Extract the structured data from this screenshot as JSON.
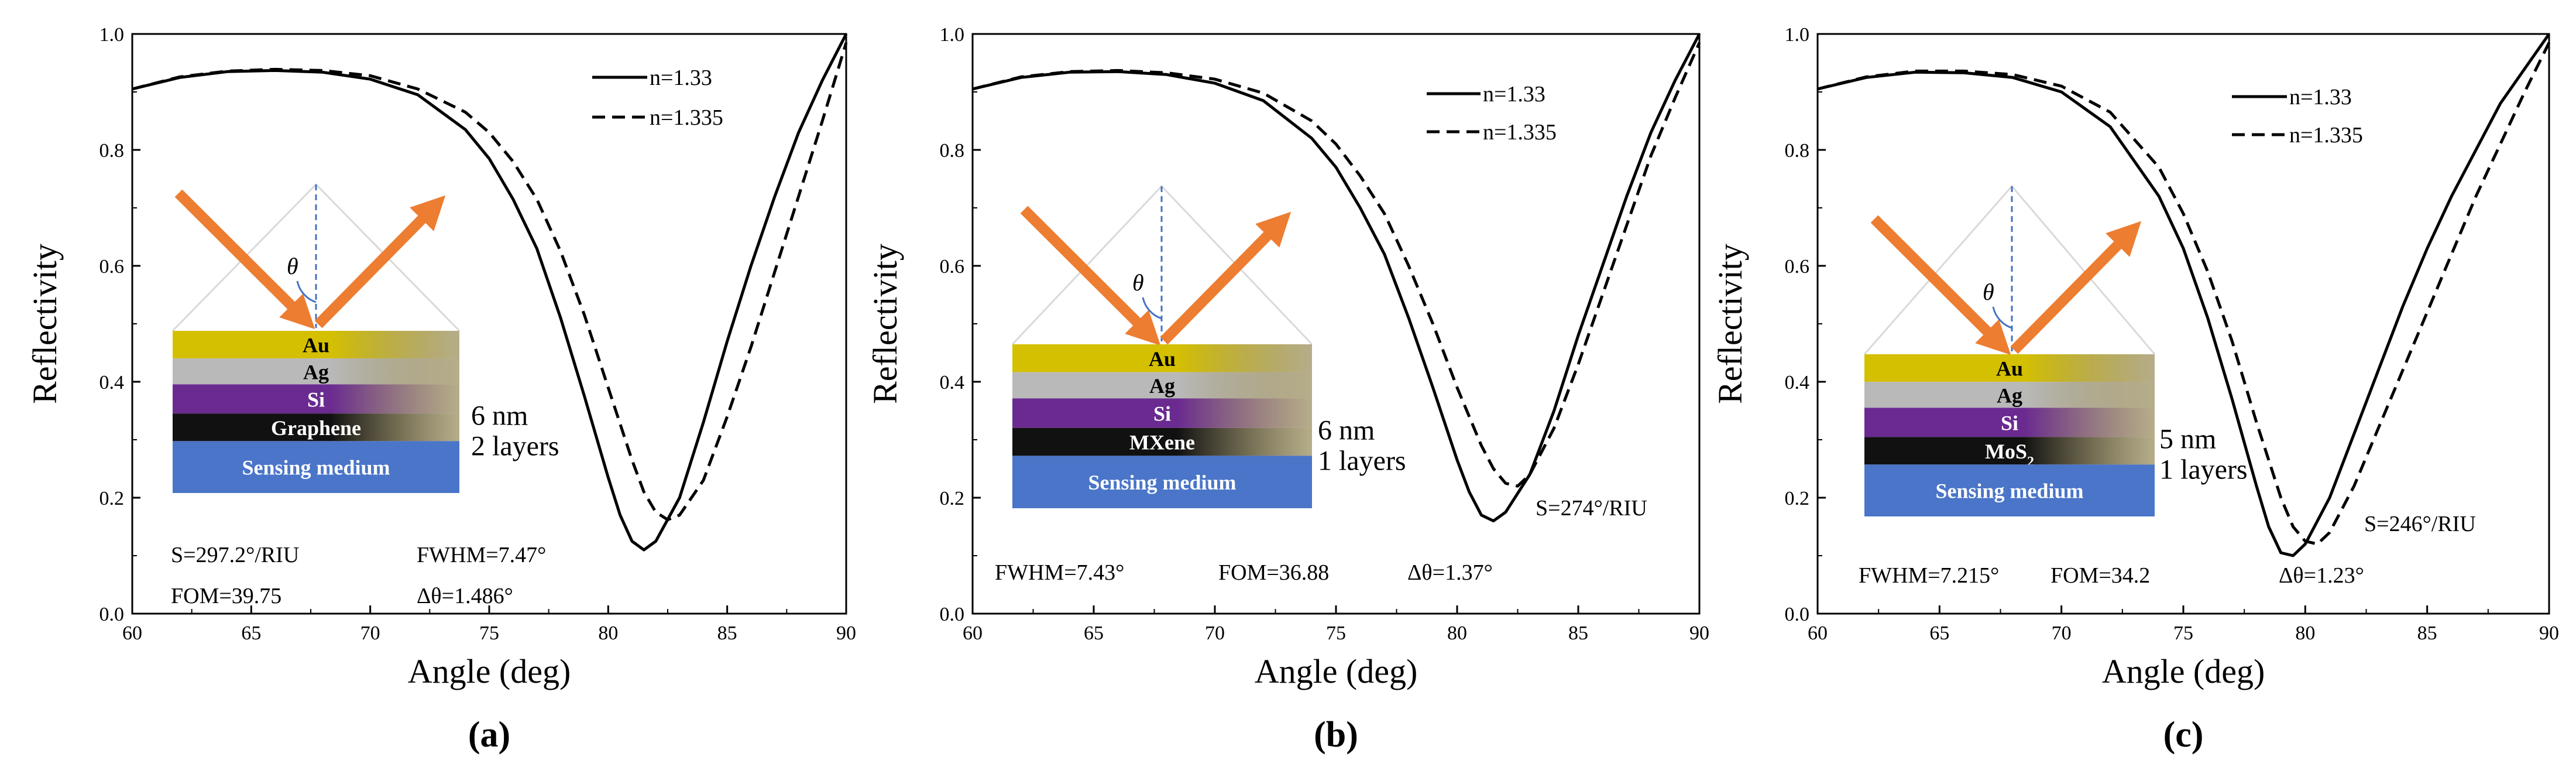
{
  "chart_data": [
    {
      "type": "line",
      "panel_label": "(a)",
      "xlabel": "Angle (deg)",
      "ylabel": "Reflectivity",
      "xlim": [
        60,
        90
      ],
      "ylim": [
        0.0,
        1.0
      ],
      "xticks": [
        "60",
        "65",
        "70",
        "75",
        "80",
        "85",
        "90"
      ],
      "yticks": [
        "0.0",
        "0.2",
        "0.4",
        "0.6",
        "0.8",
        "1.0"
      ],
      "grid": false,
      "legend_position": "top-right",
      "series": [
        {
          "name": "n=1.33",
          "style": "solid",
          "x": [
            60,
            62,
            64,
            66,
            68,
            70,
            72,
            74,
            75,
            76,
            77,
            78,
            79,
            80,
            80.5,
            81,
            81.5,
            82,
            83,
            84,
            85,
            86,
            87,
            88,
            89,
            90
          ],
          "y": [
            0.905,
            0.925,
            0.935,
            0.937,
            0.934,
            0.922,
            0.895,
            0.835,
            0.785,
            0.715,
            0.63,
            0.51,
            0.375,
            0.235,
            0.17,
            0.125,
            0.11,
            0.125,
            0.2,
            0.33,
            0.47,
            0.6,
            0.72,
            0.83,
            0.92,
            1.0
          ]
        },
        {
          "name": "n=1.335",
          "style": "dashed",
          "x": [
            60,
            62,
            64,
            66,
            68,
            70,
            72,
            74,
            75,
            76,
            77,
            78,
            79,
            80,
            81,
            81.5,
            82,
            82.5,
            83,
            84,
            85,
            86,
            87,
            88,
            89,
            90
          ],
          "y": [
            0.905,
            0.926,
            0.936,
            0.939,
            0.937,
            0.928,
            0.905,
            0.865,
            0.83,
            0.78,
            0.715,
            0.625,
            0.515,
            0.39,
            0.265,
            0.21,
            0.175,
            0.162,
            0.17,
            0.23,
            0.34,
            0.46,
            0.59,
            0.72,
            0.85,
            0.985
          ]
        }
      ],
      "annotations": [
        "S=297.2°/RIU",
        "FWHM=7.47°",
        "FOM=39.75",
        "Δθ=1.486°"
      ],
      "inset": {
        "angle_symbol": "θ",
        "layers": [
          {
            "label": "Au",
            "color": "#d4c000"
          },
          {
            "label": "Ag",
            "color": "#b9b9b9"
          },
          {
            "label": "Si",
            "color": "#6a2a90"
          },
          {
            "label": "Graphene",
            "color": "#111111"
          },
          {
            "label": "Sensing medium",
            "color": "#4a75c8"
          }
        ],
        "side_labels": [
          "6 nm",
          "2 layers"
        ]
      }
    },
    {
      "type": "line",
      "panel_label": "(b)",
      "xlabel": "Angle (deg)",
      "ylabel": "Reflectivity",
      "xlim": [
        60,
        90
      ],
      "ylim": [
        0.0,
        1.0
      ],
      "xticks": [
        "60",
        "65",
        "70",
        "75",
        "80",
        "85",
        "90"
      ],
      "yticks": [
        "0.0",
        "0.2",
        "0.4",
        "0.6",
        "0.8",
        "1.0"
      ],
      "grid": false,
      "legend_position": "top-right",
      "series": [
        {
          "name": "n=1.33",
          "style": "solid",
          "x": [
            60,
            62,
            64,
            66,
            68,
            70,
            72,
            74,
            75,
            76,
            77,
            78,
            79,
            80,
            80.5,
            81,
            81.5,
            82,
            83,
            84,
            85,
            86,
            87,
            88,
            89,
            90
          ],
          "y": [
            0.905,
            0.925,
            0.934,
            0.935,
            0.93,
            0.915,
            0.885,
            0.82,
            0.77,
            0.7,
            0.62,
            0.51,
            0.39,
            0.265,
            0.21,
            0.17,
            0.16,
            0.175,
            0.24,
            0.35,
            0.48,
            0.6,
            0.72,
            0.83,
            0.92,
            1.0
          ]
        },
        {
          "name": "n=1.335",
          "style": "dashed",
          "x": [
            60,
            62,
            64,
            66,
            68,
            70,
            72,
            74,
            75,
            76,
            77,
            78,
            79,
            80,
            81,
            81.5,
            82,
            82.5,
            83,
            84,
            85,
            86,
            87,
            88,
            89,
            90
          ],
          "y": [
            0.905,
            0.926,
            0.935,
            0.937,
            0.933,
            0.922,
            0.898,
            0.85,
            0.81,
            0.755,
            0.69,
            0.6,
            0.5,
            0.39,
            0.29,
            0.25,
            0.225,
            0.22,
            0.24,
            0.32,
            0.43,
            0.55,
            0.67,
            0.79,
            0.89,
            0.985
          ]
        }
      ],
      "annotations": [
        "S=274°/RIU",
        "FWHM=7.43°",
        "FOM=36.88",
        "Δθ=1.37°"
      ],
      "inset": {
        "angle_symbol": "θ",
        "layers": [
          {
            "label": "Au",
            "color": "#d4c000"
          },
          {
            "label": "Ag",
            "color": "#b9b9b9"
          },
          {
            "label": "Si",
            "color": "#6a2a90"
          },
          {
            "label": "MXene",
            "color": "#111111"
          },
          {
            "label": "Sensing medium",
            "color": "#4a75c8"
          }
        ],
        "side_labels": [
          "6 nm",
          "1 layers"
        ]
      }
    },
    {
      "type": "line",
      "panel_label": "(c)",
      "xlabel": "Angle (deg)",
      "ylabel": "Reflectivity",
      "xlim": [
        60,
        90
      ],
      "ylim": [
        0.0,
        1.0
      ],
      "xticks": [
        "60",
        "65",
        "70",
        "75",
        "80",
        "85",
        "90"
      ],
      "yticks": [
        "0.0",
        "0.2",
        "0.4",
        "0.6",
        "0.8",
        "1.0"
      ],
      "grid": false,
      "legend_position": "top-right",
      "series": [
        {
          "name": "n=1.33",
          "style": "solid",
          "x": [
            60,
            62,
            64,
            66,
            68,
            70,
            72,
            74,
            75,
            76,
            77,
            78,
            78.5,
            79,
            79.5,
            80,
            81,
            82,
            83,
            84,
            85,
            86,
            87,
            88,
            89,
            90
          ],
          "y": [
            0.905,
            0.925,
            0.934,
            0.933,
            0.925,
            0.9,
            0.84,
            0.72,
            0.63,
            0.51,
            0.37,
            0.22,
            0.15,
            0.105,
            0.1,
            0.12,
            0.2,
            0.31,
            0.42,
            0.53,
            0.63,
            0.72,
            0.8,
            0.88,
            0.94,
            1.0
          ]
        },
        {
          "name": "n=1.335",
          "style": "dashed",
          "x": [
            60,
            62,
            64,
            66,
            68,
            70,
            72,
            74,
            75,
            76,
            77,
            78,
            79,
            79.5,
            80,
            80.5,
            81,
            82,
            83,
            84,
            85,
            86,
            87,
            88,
            89,
            90
          ],
          "y": [
            0.905,
            0.926,
            0.936,
            0.936,
            0.93,
            0.91,
            0.865,
            0.77,
            0.69,
            0.59,
            0.47,
            0.33,
            0.2,
            0.15,
            0.125,
            0.12,
            0.14,
            0.22,
            0.32,
            0.42,
            0.52,
            0.62,
            0.72,
            0.81,
            0.9,
            0.985
          ]
        }
      ],
      "annotations": [
        "S=246°/RIU",
        "FWHM=7.215°",
        "FOM=34.2",
        "Δθ=1.23°"
      ],
      "inset": {
        "angle_symbol": "θ",
        "layers": [
          {
            "label": "Au",
            "color": "#d4c000"
          },
          {
            "label": "Ag",
            "color": "#b9b9b9"
          },
          {
            "label": "Si",
            "color": "#6a2a90"
          },
          {
            "label": "MoS",
            "subscript": "2",
            "color": "#111111"
          },
          {
            "label": "Sensing medium",
            "color": "#4a75c8"
          }
        ],
        "side_labels": [
          "5 nm",
          "1 layers"
        ]
      }
    }
  ],
  "colors": {
    "arrow": "#ed7d31",
    "normal_line": "#4472c4",
    "prism_outline": "#d9d9d9"
  }
}
